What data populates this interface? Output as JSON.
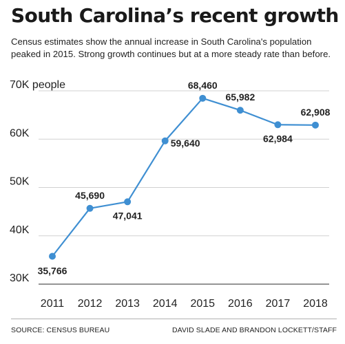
{
  "title": "South Carolina’s recent growth",
  "subtitle": "Census estimates show the annual increase in South Carolina's population peaked in 2015. Strong growth continues but at a more steady rate than before.",
  "footer": {
    "source": "SOURCE: CENSUS BUREAU",
    "credit": "DAVID SLADE AND BRANDON LOCKETT/STAFF"
  },
  "colors": {
    "line": "#3f8fd2",
    "grid": "#d0d0d0",
    "text": "#222222"
  },
  "chart_data": {
    "type": "line",
    "title": "South Carolina’s recent growth",
    "xlabel": "",
    "ylabel": "",
    "x": [
      "2011",
      "2012",
      "2013",
      "2014",
      "2015",
      "2016",
      "2017",
      "2018"
    ],
    "series": [
      {
        "values": [
          35766,
          45690,
          47041,
          59640,
          68460,
          65982,
          62984,
          62908
        ]
      }
    ],
    "data_labels": [
      "35,766",
      "45,690",
      "47,041",
      "59,640",
      "68,460",
      "65,982",
      "62,984",
      "62,908"
    ],
    "yticks": [
      30000,
      40000,
      50000,
      60000,
      70000
    ],
    "ytick_labels": [
      "30K",
      "40K",
      "50K",
      "60K",
      "70K people"
    ],
    "ylim": [
      30000,
      70000
    ],
    "grid": "horizontal"
  }
}
